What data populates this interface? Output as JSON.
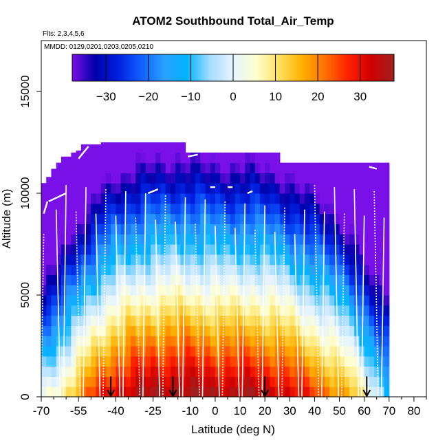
{
  "chart_data": {
    "type": "heatmap",
    "title": "ATOM2 Southbound Total_Air_Temp",
    "subtitle": "Flts: 2,3,4,5,6",
    "annotation": "MMDD: 0129,0201,0203,0205,0210",
    "xlabel": "Latitude (deg N)",
    "ylabel": "Altitude (m)",
    "xlim": [
      -70,
      85
    ],
    "ylim": [
      0,
      17500
    ],
    "x_ticks": [
      -70,
      -55,
      -40,
      -25,
      -10,
      0,
      10,
      20,
      30,
      40,
      50,
      60,
      70,
      80
    ],
    "x_ticks_minor": [
      -65,
      -60,
      -50,
      -45,
      -35,
      -30,
      -20,
      -15,
      -5,
      5,
      15,
      25,
      35,
      45,
      55,
      65,
      75,
      85
    ],
    "y_ticks": [
      0,
      5000,
      10000,
      15000
    ],
    "colorbar": {
      "range": [
        -38,
        38
      ],
      "ticks": [
        -30,
        -20,
        -10,
        0,
        10,
        20,
        30
      ],
      "colors": [
        "#7a10e8",
        "#0000a8",
        "#0020e0",
        "#1060ff",
        "#2aa0ff",
        "#00b4ff",
        "#a6dcff",
        "#e6f4ff",
        "#ffffd0",
        "#ffe060",
        "#ffb000",
        "#ff7000",
        "#ff2000",
        "#d00000",
        "#a02020"
      ]
    },
    "grid": {
      "lat_start": -69,
      "lat_step": 2,
      "alt_step": 500,
      "columns": [
        {
          "lat": -69,
          "top": 10500
        },
        {
          "lat": -67,
          "top": 10800
        },
        {
          "lat": -65,
          "top": 11200
        },
        {
          "lat": -63,
          "top": 11500
        },
        {
          "lat": -61,
          "top": 11800
        },
        {
          "lat": -59,
          "top": 11800
        },
        {
          "lat": -57,
          "top": 12000
        },
        {
          "lat": -55,
          "top": 12100
        },
        {
          "lat": -53,
          "top": 12400
        },
        {
          "lat": -51,
          "top": 12400
        },
        {
          "lat": -49,
          "top": 12400
        },
        {
          "lat": -47,
          "top": 12400
        },
        {
          "lat": -45,
          "top": 12500
        },
        {
          "lat": -43,
          "top": 12500
        },
        {
          "lat": -41,
          "top": 12500
        },
        {
          "lat": -39,
          "top": 12500
        },
        {
          "lat": -37,
          "top": 12500
        },
        {
          "lat": -35,
          "top": 12500
        },
        {
          "lat": -33,
          "top": 12500
        },
        {
          "lat": -31,
          "top": 12500
        },
        {
          "lat": -29,
          "top": 12500
        },
        {
          "lat": -27,
          "top": 12500
        },
        {
          "lat": -25,
          "top": 12500
        },
        {
          "lat": -23,
          "top": 12500
        },
        {
          "lat": -21,
          "top": 12500
        },
        {
          "lat": -19,
          "top": 12500
        },
        {
          "lat": -17,
          "top": 12500
        },
        {
          "lat": -15,
          "top": 12500
        },
        {
          "lat": -13,
          "top": 12500
        },
        {
          "lat": -11,
          "top": 12000
        },
        {
          "lat": -9,
          "top": 12000
        },
        {
          "lat": -7,
          "top": 12000
        },
        {
          "lat": -5,
          "top": 12000
        },
        {
          "lat": -3,
          "top": 12000
        },
        {
          "lat": -1,
          "top": 12000
        },
        {
          "lat": 1,
          "top": 12000
        },
        {
          "lat": 3,
          "top": 12000
        },
        {
          "lat": 5,
          "top": 12000
        },
        {
          "lat": 7,
          "top": 12000
        },
        {
          "lat": 9,
          "top": 12000
        },
        {
          "lat": 11,
          "top": 12000
        },
        {
          "lat": 13,
          "top": 12000
        },
        {
          "lat": 15,
          "top": 12000
        },
        {
          "lat": 17,
          "top": 12000
        },
        {
          "lat": 19,
          "top": 12000
        },
        {
          "lat": 21,
          "top": 12000
        },
        {
          "lat": 23,
          "top": 12000
        },
        {
          "lat": 25,
          "top": 12000
        },
        {
          "lat": 27,
          "top": 11500
        },
        {
          "lat": 29,
          "top": 11500
        },
        {
          "lat": 31,
          "top": 11500
        },
        {
          "lat": 33,
          "top": 11500
        },
        {
          "lat": 35,
          "top": 11500
        },
        {
          "lat": 37,
          "top": 11500
        },
        {
          "lat": 39,
          "top": 11500
        },
        {
          "lat": 41,
          "top": 11500
        },
        {
          "lat": 43,
          "top": 11500
        },
        {
          "lat": 45,
          "top": 11500
        },
        {
          "lat": 47,
          "top": 11500
        },
        {
          "lat": 49,
          "top": 11500
        },
        {
          "lat": 51,
          "top": 11500
        },
        {
          "lat": 53,
          "top": 11500
        },
        {
          "lat": 55,
          "top": 11500
        },
        {
          "lat": 57,
          "top": 11500
        },
        {
          "lat": 59,
          "top": 11500
        },
        {
          "lat": 61,
          "top": 11500
        },
        {
          "lat": 63,
          "top": 11500
        },
        {
          "lat": 65,
          "top": 11500
        },
        {
          "lat": 67,
          "top": 11500
        },
        {
          "lat": 69,
          "top": 11500
        }
      ],
      "surface_temp_profile": [
        {
          "lat": -69,
          "t0": 0
        },
        {
          "lat": -63,
          "t0": 6
        },
        {
          "lat": -57,
          "t0": 14
        },
        {
          "lat": -51,
          "t0": 22
        },
        {
          "lat": -45,
          "t0": 28
        },
        {
          "lat": -39,
          "t0": 32
        },
        {
          "lat": -33,
          "t0": 34
        },
        {
          "lat": -25,
          "t0": 36
        },
        {
          "lat": -15,
          "t0": 37
        },
        {
          "lat": -5,
          "t0": 36
        },
        {
          "lat": 5,
          "t0": 35
        },
        {
          "lat": 15,
          "t0": 35
        },
        {
          "lat": 25,
          "t0": 33
        },
        {
          "lat": 35,
          "t0": 28
        },
        {
          "lat": 45,
          "t0": 22
        },
        {
          "lat": 53,
          "t0": 16
        },
        {
          "lat": 59,
          "t0": 8
        },
        {
          "lat": 63,
          "t0": 1
        },
        {
          "lat": 69,
          "t0": -8
        }
      ],
      "lapse_rate_per_km": 6.5
    },
    "flight_track": {
      "ceiling_segments": [
        {
          "x": [
            -69,
            -67.5
          ],
          "y": [
            9000,
            9600
          ]
        },
        {
          "x": [
            -67,
            -60
          ],
          "y": [
            9600,
            10000
          ]
        },
        {
          "x": [
            -55,
            -51
          ],
          "y": [
            11700,
            12300
          ]
        },
        {
          "x": [
            -27,
            -23
          ],
          "y": [
            10000,
            10200
          ]
        },
        {
          "x": [
            -11,
            -7
          ],
          "y": [
            11800,
            11900
          ]
        },
        {
          "x": [
            -2,
            0
          ],
          "y": [
            10300,
            10300
          ]
        },
        {
          "x": [
            5,
            7
          ],
          "y": [
            10300,
            10300
          ]
        },
        {
          "x": [
            13,
            15
          ],
          "y": [
            10000,
            10100
          ]
        },
        {
          "x": [
            62,
            65
          ],
          "y": [
            11300,
            11200
          ]
        }
      ],
      "profiles": [
        -69,
        -64,
        -60,
        -56,
        -52,
        -48,
        -44,
        -40,
        -36,
        -32,
        -28,
        -24,
        -20,
        -16,
        -12,
        -8,
        -4,
        0,
        4,
        8,
        12,
        16,
        20,
        24,
        28,
        32,
        36,
        40,
        44,
        48,
        52,
        56,
        60,
        64,
        68
      ],
      "color": "#ffffff"
    },
    "arrows": [
      -42,
      -17,
      20,
      61
    ]
  }
}
